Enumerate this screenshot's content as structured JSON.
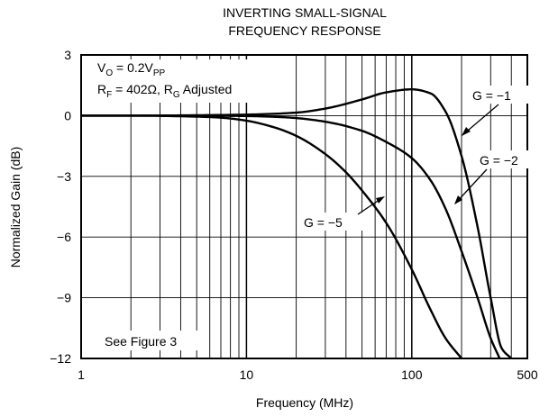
{
  "chart_data": {
    "type": "line",
    "title_lines": [
      "INVERTING SMALL-SIGNAL",
      "FREQUENCY RESPONSE"
    ],
    "xlabel": "Frequency (MHz)",
    "ylabel": "Normalized Gain (dB)",
    "xscale": "log",
    "xlim": [
      1,
      500
    ],
    "ylim": [
      -12,
      3
    ],
    "grid": true,
    "xticks": [
      {
        "value": 1,
        "label": "1"
      },
      {
        "value": 10,
        "label": "10"
      },
      {
        "value": 100,
        "label": "100"
      },
      {
        "value": 500,
        "label": "500"
      }
    ],
    "yticks": [
      {
        "value": 3,
        "label": "3"
      },
      {
        "value": 0,
        "label": "0"
      },
      {
        "value": -3,
        "label": "−3"
      },
      {
        "value": -6,
        "label": "−6"
      },
      {
        "value": -9,
        "label": "−9"
      },
      {
        "value": -12,
        "label": "−12"
      }
    ],
    "conditions": {
      "line1": {
        "main": "V",
        "sub1": "O",
        "mid": " = 0.2V",
        "sub2": "PP"
      },
      "line2": {
        "a": "R",
        "a_sub": "F",
        "b": " = 402Ω, R",
        "b_sub": "G",
        "c": " Adjusted"
      }
    },
    "note": "See Figure 3",
    "series": [
      {
        "name": "G = −1",
        "x": [
          1,
          2,
          5,
          10,
          20,
          30,
          50,
          70,
          100,
          130,
          160,
          200,
          250,
          300,
          350,
          400
        ],
        "y": [
          0,
          0,
          0.02,
          0.05,
          0.15,
          0.35,
          0.8,
          1.15,
          1.3,
          1.1,
          0.2,
          -2.0,
          -5.5,
          -9.0,
          -11.5,
          -12.0
        ]
      },
      {
        "name": "G = −2",
        "x": [
          1,
          2,
          5,
          10,
          15,
          20,
          30,
          50,
          70,
          100,
          130,
          160,
          200,
          250,
          300,
          340
        ],
        "y": [
          0,
          0,
          0,
          -0.02,
          -0.06,
          -0.12,
          -0.3,
          -0.75,
          -1.3,
          -2.1,
          -3.2,
          -4.6,
          -6.7,
          -9.0,
          -11.0,
          -12.0
        ]
      },
      {
        "name": "G = −5",
        "x": [
          1,
          2,
          5,
          7,
          10,
          15,
          20,
          30,
          40,
          50,
          70,
          100,
          130,
          160,
          200
        ],
        "y": [
          0,
          0,
          -0.05,
          -0.1,
          -0.25,
          -0.6,
          -1.0,
          -1.9,
          -2.8,
          -3.7,
          -5.3,
          -7.6,
          -9.6,
          -11.0,
          -12.0
        ]
      }
    ],
    "annotations": [
      {
        "text": "G = −1",
        "series": 0
      },
      {
        "text": "G = −2",
        "series": 1
      },
      {
        "text": "G = −5",
        "series": 2
      }
    ]
  }
}
